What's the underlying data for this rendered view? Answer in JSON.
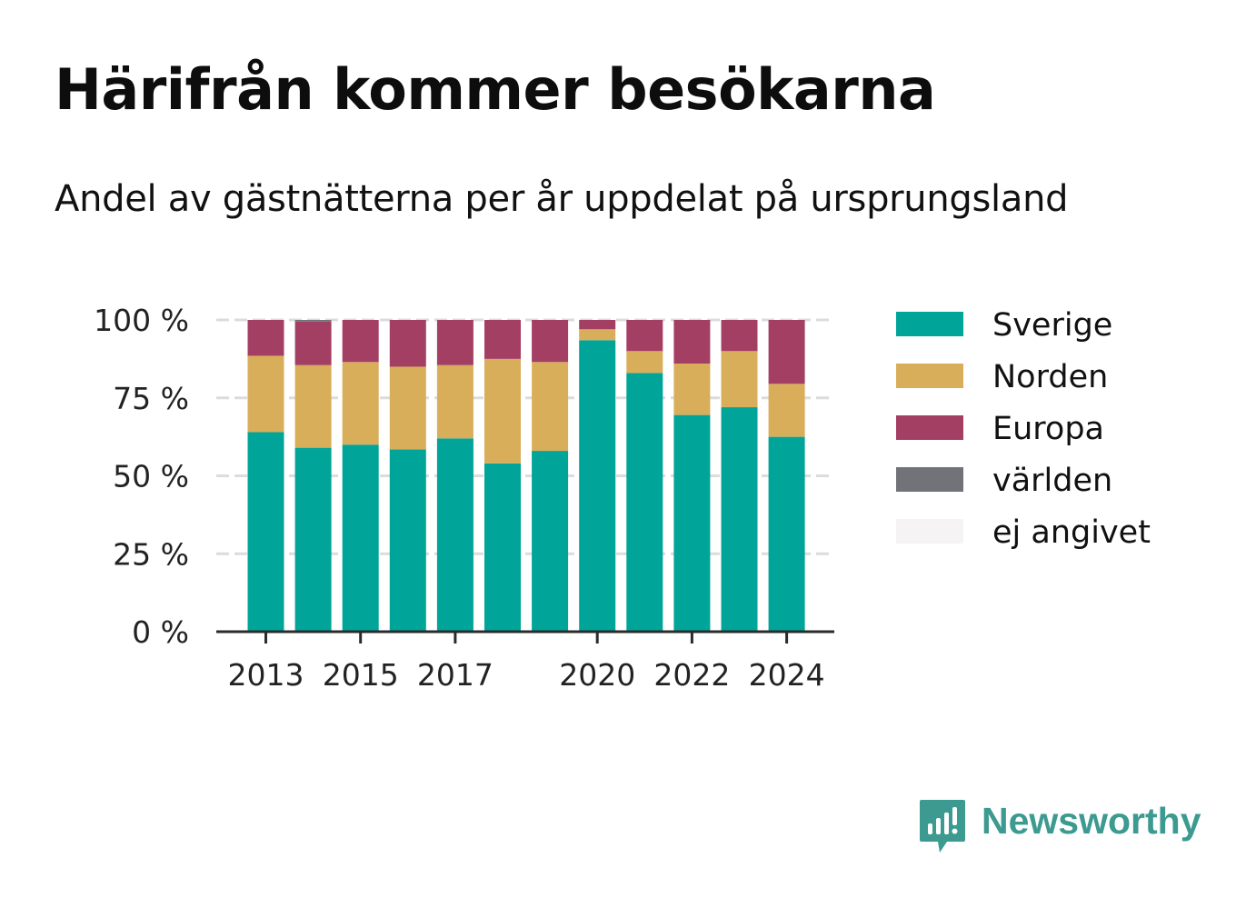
{
  "chart_data": {
    "type": "bar",
    "stacked": true,
    "title": "Härifrån kommer besökarna",
    "subtitle": "Andel av gästnätterna per år uppdelat på ursprungsland",
    "x": [
      2013,
      2014,
      2015,
      2016,
      2017,
      2018,
      2019,
      2020,
      2021,
      2022,
      2023,
      2024
    ],
    "x_tick_labels": [
      "2013",
      "2015",
      "2017",
      "2020",
      "2022",
      "2024"
    ],
    "x_tick_values": [
      2013,
      2015,
      2017,
      2020,
      2022,
      2024
    ],
    "y_tick_labels": [
      "0 %",
      "25 %",
      "50 %",
      "75 %",
      "100 %"
    ],
    "y_tick_values": [
      0,
      25,
      50,
      75,
      100
    ],
    "ylim": [
      0,
      100
    ],
    "grid": true,
    "legend_position": "right",
    "series": [
      {
        "name": "Sverige",
        "color": "#00a499",
        "values": [
          64,
          59,
          60,
          58.5,
          62,
          54,
          58,
          93.5,
          83,
          69.5,
          72,
          62.5
        ]
      },
      {
        "name": "Norden",
        "color": "#d9ae5a",
        "values": [
          24.5,
          26.5,
          26.5,
          26.5,
          23.5,
          33.5,
          28.5,
          3.5,
          7,
          16.5,
          18,
          17
        ]
      },
      {
        "name": "Europa",
        "color": "#a43f64",
        "values": [
          11.5,
          14,
          13.5,
          15,
          14.5,
          12.5,
          13.5,
          3,
          10,
          14,
          10,
          20.5
        ]
      },
      {
        "name": "världen",
        "color": "#727279",
        "values": [
          0,
          0.5,
          0,
          0,
          0,
          0,
          0,
          0,
          0,
          0,
          0,
          0
        ]
      },
      {
        "name": "ej angivet",
        "color": "#f5f3f3",
        "values": [
          0,
          0,
          0,
          0,
          0,
          0,
          0,
          0,
          0,
          0,
          0,
          0
        ]
      }
    ]
  },
  "brand": {
    "name": "Newsworthy",
    "icon": "newsworthy-logo-icon",
    "color": "#3c9a90"
  }
}
